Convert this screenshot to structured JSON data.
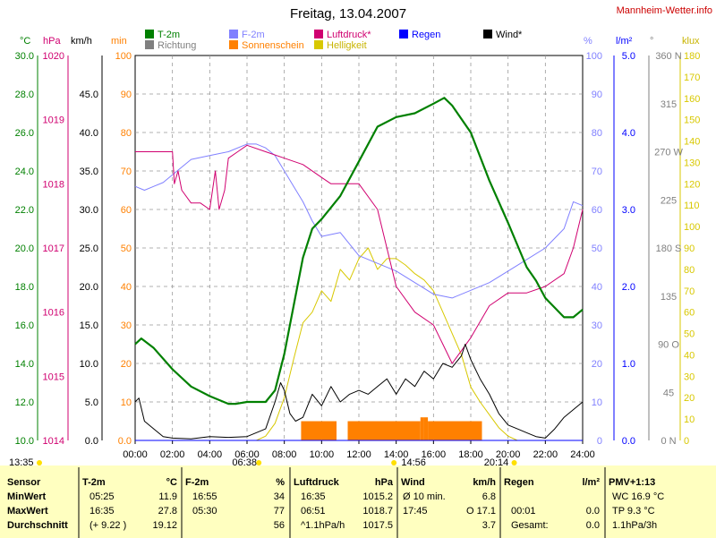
{
  "header": {
    "title": "Freitag, 13.04.2007",
    "site": "Mannheim-Wetter.info"
  },
  "colors": {
    "temperature": "#008000",
    "humidity": "#8080ff",
    "pressure": "#d00070",
    "rain": "#0000ff",
    "wind": "#000000",
    "direction": "#808080",
    "sunshine": "#ff8000",
    "brightness": "#d8c800",
    "min_axis": "#ff8000",
    "lux_axis": "#d8c800",
    "table_bg": "#ffffc0",
    "grid": "#999999"
  },
  "chart_data": {
    "type": "line",
    "title": "Freitag, 13.04.2007",
    "x_range": [
      0,
      24
    ],
    "x_ticks": [
      "00:00",
      "02:00",
      "04:00",
      "06:00",
      "08:00",
      "10:00",
      "12:00",
      "14:00",
      "16:00",
      "18:00",
      "20:00",
      "22:00",
      "24:00"
    ],
    "grid": true,
    "legend": [
      {
        "label": "T-2m",
        "color": "#008000"
      },
      {
        "label": "Richtung",
        "color": "#808080"
      },
      {
        "label": "F-2m",
        "color": "#8080ff"
      },
      {
        "label": "Sonnenschein",
        "color": "#ff8000"
      },
      {
        "label": "Luftdruck*",
        "color": "#d00070"
      },
      {
        "label": "Helligkeit",
        "color": "#d8c800"
      },
      {
        "label": "Regen",
        "color": "#0000ff"
      },
      {
        "label": "Wind*",
        "color": "#000000"
      }
    ],
    "axes": {
      "temperature": {
        "unit": "°C",
        "range": [
          10,
          30
        ],
        "ticks": [
          "10.0",
          "12.0",
          "14.0",
          "16.0",
          "18.0",
          "20.0",
          "22.0",
          "24.0",
          "26.0",
          "28.0",
          "30.0"
        ]
      },
      "pressure": {
        "unit": "hPa",
        "range": [
          1014,
          1020
        ],
        "ticks": [
          "1014",
          "1015",
          "1016",
          "1017",
          "1018",
          "1019",
          "1020"
        ]
      },
      "wind": {
        "unit": "km/h",
        "range": [
          0,
          50
        ],
        "ticks": [
          "0.0",
          "5.0",
          "10.0",
          "15.0",
          "20.0",
          "25.0",
          "30.0",
          "35.0",
          "40.0",
          "45.0"
        ]
      },
      "minutes": {
        "unit": "min",
        "range": [
          0,
          100
        ],
        "ticks": [
          "0.0",
          "10",
          "20",
          "30",
          "40",
          "50",
          "60",
          "70",
          "80",
          "90",
          "100"
        ]
      },
      "humidity": {
        "unit": "%",
        "range": [
          0,
          100
        ],
        "ticks": [
          "0",
          "10",
          "20",
          "30",
          "40",
          "50",
          "60",
          "70",
          "80",
          "90",
          "100"
        ]
      },
      "rain": {
        "unit": "l/m²",
        "range": [
          0,
          5
        ],
        "ticks": [
          "0.0",
          "1.0",
          "2.0",
          "3.0",
          "4.0",
          "5.0"
        ]
      },
      "direction": {
        "unit": "°",
        "range": [
          0,
          360
        ],
        "ticks": [
          "0 N",
          "45",
          "90 O",
          "135",
          "180 S",
          "225",
          "270 W",
          "315",
          "360 N"
        ]
      },
      "lux": {
        "unit": "klux",
        "range": [
          0,
          180
        ],
        "ticks": [
          "0",
          "10",
          "20",
          "30",
          "40",
          "50",
          "60",
          "70",
          "80",
          "90",
          "100",
          "110",
          "120",
          "130",
          "140",
          "150",
          "160",
          "170",
          "180"
        ]
      }
    },
    "series": [
      {
        "name": "T-2m",
        "axis": "temperature",
        "x": [
          0,
          0.33,
          1,
          2,
          3,
          4,
          5,
          5.42,
          6,
          7,
          7.5,
          8,
          8.5,
          9,
          9.5,
          10,
          11,
          12,
          13,
          14,
          15,
          16,
          16.58,
          17,
          18,
          19,
          20,
          21,
          21.5,
          22,
          23,
          23.5,
          24
        ],
        "y": [
          15.0,
          15.3,
          14.8,
          13.7,
          12.8,
          12.3,
          11.9,
          11.9,
          12.0,
          12.0,
          12.6,
          14.5,
          17.0,
          19.5,
          21.0,
          21.5,
          22.7,
          24.5,
          26.3,
          26.8,
          27.0,
          27.5,
          27.8,
          27.4,
          26.0,
          23.5,
          21.3,
          19.0,
          18.3,
          17.4,
          16.4,
          16.4,
          16.8
        ]
      },
      {
        "name": "F-2m",
        "axis": "humidity",
        "x": [
          0,
          0.5,
          1,
          1.5,
          2,
          3,
          4,
          5,
          6,
          6.5,
          7,
          7.5,
          8,
          8.5,
          9,
          9.5,
          10,
          11,
          12,
          13,
          14,
          15,
          16,
          17,
          18,
          19,
          20,
          21,
          22,
          23,
          23.5,
          24
        ],
        "y": [
          66,
          65,
          66,
          67,
          69,
          73,
          74,
          75,
          77,
          77,
          76,
          74,
          70,
          66,
          62,
          57,
          53,
          54,
          48,
          46,
          44,
          41,
          38,
          37,
          39,
          41,
          44,
          47,
          50,
          55,
          62,
          61
        ]
      },
      {
        "name": "Luftdruck*",
        "axis": "pressure",
        "x": [
          0,
          1,
          2,
          2.1,
          2.3,
          2.5,
          3,
          3.5,
          4,
          4,
          4.3,
          4.5,
          4.8,
          5,
          5.5,
          6,
          7,
          8,
          9,
          10,
          10.5,
          11,
          12,
          13,
          14,
          15,
          16,
          16.5,
          17,
          17.5,
          18,
          19,
          20,
          21,
          22,
          23,
          23.5,
          24
        ],
        "y": [
          1018.5,
          1018.5,
          1018.5,
          1018.0,
          1018.2,
          1017.9,
          1017.7,
          1017.7,
          1017.6,
          1017.6,
          1018.2,
          1017.6,
          1017.9,
          1018.4,
          1018.5,
          1018.6,
          1018.5,
          1018.4,
          1018.3,
          1018.1,
          1018.0,
          1018.0,
          1018.0,
          1017.6,
          1016.4,
          1016.0,
          1015.8,
          1015.5,
          1015.2,
          1015.4,
          1015.6,
          1016.1,
          1016.3,
          1016.3,
          1016.4,
          1016.6,
          1017.0,
          1017.6
        ]
      },
      {
        "name": "Wind*",
        "axis": "wind",
        "x": [
          0,
          0.2,
          0.5,
          1,
          1.5,
          2,
          3,
          4,
          5,
          6,
          7,
          7.5,
          7.8,
          8,
          8.3,
          8.6,
          9,
          9.5,
          10,
          10.5,
          11,
          11.5,
          12,
          12.5,
          13,
          13.5,
          14,
          14.5,
          15,
          15.5,
          16,
          16.5,
          17,
          17.5,
          17.7,
          18,
          18.5,
          19,
          19.5,
          20,
          20.5,
          21,
          21.5,
          22,
          22.5,
          23,
          23.5,
          24
        ],
        "y": [
          5.0,
          5.5,
          2.5,
          1.5,
          0.5,
          0.3,
          0.2,
          0.5,
          0.4,
          0.5,
          1.5,
          5.0,
          7.5,
          6.5,
          3.5,
          2.5,
          3.0,
          6.0,
          4.5,
          7.0,
          5.0,
          6.0,
          6.5,
          6.0,
          7.0,
          8.0,
          6.0,
          8.0,
          7.0,
          9.0,
          8.0,
          10.0,
          9.5,
          11.0,
          12.5,
          10.5,
          8.0,
          6.0,
          3.5,
          2.0,
          1.5,
          1.0,
          0.5,
          0.3,
          1.5,
          3.0,
          4.0,
          5.0
        ]
      },
      {
        "name": "Helligkeit",
        "axis": "lux",
        "x": [
          0,
          5.5,
          6.5,
          7,
          7.5,
          8,
          8.5,
          9,
          9.5,
          10,
          10.5,
          11,
          11.5,
          12,
          12.5,
          13,
          13.5,
          14,
          14.5,
          15,
          15.5,
          16,
          16.5,
          17,
          17.5,
          18,
          18.5,
          19,
          19.5,
          20,
          20.5,
          21,
          24
        ],
        "y": [
          0,
          0,
          0,
          2,
          8,
          20,
          38,
          55,
          60,
          70,
          65,
          80,
          75,
          85,
          90,
          80,
          85,
          85,
          82,
          78,
          75,
          70,
          60,
          50,
          40,
          25,
          18,
          12,
          6,
          2,
          0,
          0,
          0
        ]
      },
      {
        "name": "Sonnenschein",
        "axis": "minutes",
        "x": [
          8.5,
          8.8,
          8.9,
          10.8,
          11.2,
          11.4,
          15.3,
          15.5,
          15.7,
          18.6
        ],
        "y": [
          5,
          0,
          5,
          5,
          0,
          5,
          5,
          6,
          5,
          5
        ]
      },
      {
        "name": "Regen",
        "axis": "rain",
        "x": [
          0,
          24
        ],
        "y": [
          0,
          0
        ]
      }
    ],
    "annotations": {
      "sunrise": "06:38",
      "sunset": "20:14",
      "solar_noon": "14:56",
      "time_left": "13:35"
    }
  },
  "table": {
    "columns": [
      {
        "name": "Sensor",
        "unit": ""
      },
      {
        "name": "T-2m",
        "unit": "°C"
      },
      {
        "name": "F-2m",
        "unit": "%"
      },
      {
        "name": "Luftdruck",
        "unit": "hPa"
      },
      {
        "name": "Wind",
        "unit": "km/h"
      },
      {
        "name": "Regen",
        "unit": "l/m²"
      },
      {
        "name": "PMV+1:13",
        "unit": ""
      }
    ],
    "rows": [
      {
        "label": "MinWert",
        "t_time": "05:25",
        "t_val": "11.9",
        "f_time": "16:55",
        "f_val": "34",
        "p_time": "16:35",
        "p_val": "1015.2",
        "w_label": "Ø 10 min.",
        "w_val": "6.8",
        "r_label": "",
        "r_val": "",
        "pmv": "WC 16.9 °C"
      },
      {
        "label": "MaxWert",
        "t_time": "16:35",
        "t_val": "27.8",
        "f_time": "05:30",
        "f_val": "77",
        "p_time": "06:51",
        "p_val": "1018.7",
        "w_label": "17:45",
        "w_val": "O 17.1",
        "r_label": "00:01",
        "r_val": "0.0",
        "pmv": "TP 9.3 °C"
      },
      {
        "label": "Durchschnitt",
        "t_time": "(+ 9.22 )",
        "t_val": "19.12",
        "f_time": "",
        "f_val": "56",
        "p_time": "^1.1hPa/h",
        "p_val": "1017.5",
        "w_label": "",
        "w_val": "3.7",
        "r_label": "Gesamt:",
        "r_val": "0.0",
        "pmv": "1.1hPa/3h"
      }
    ]
  }
}
